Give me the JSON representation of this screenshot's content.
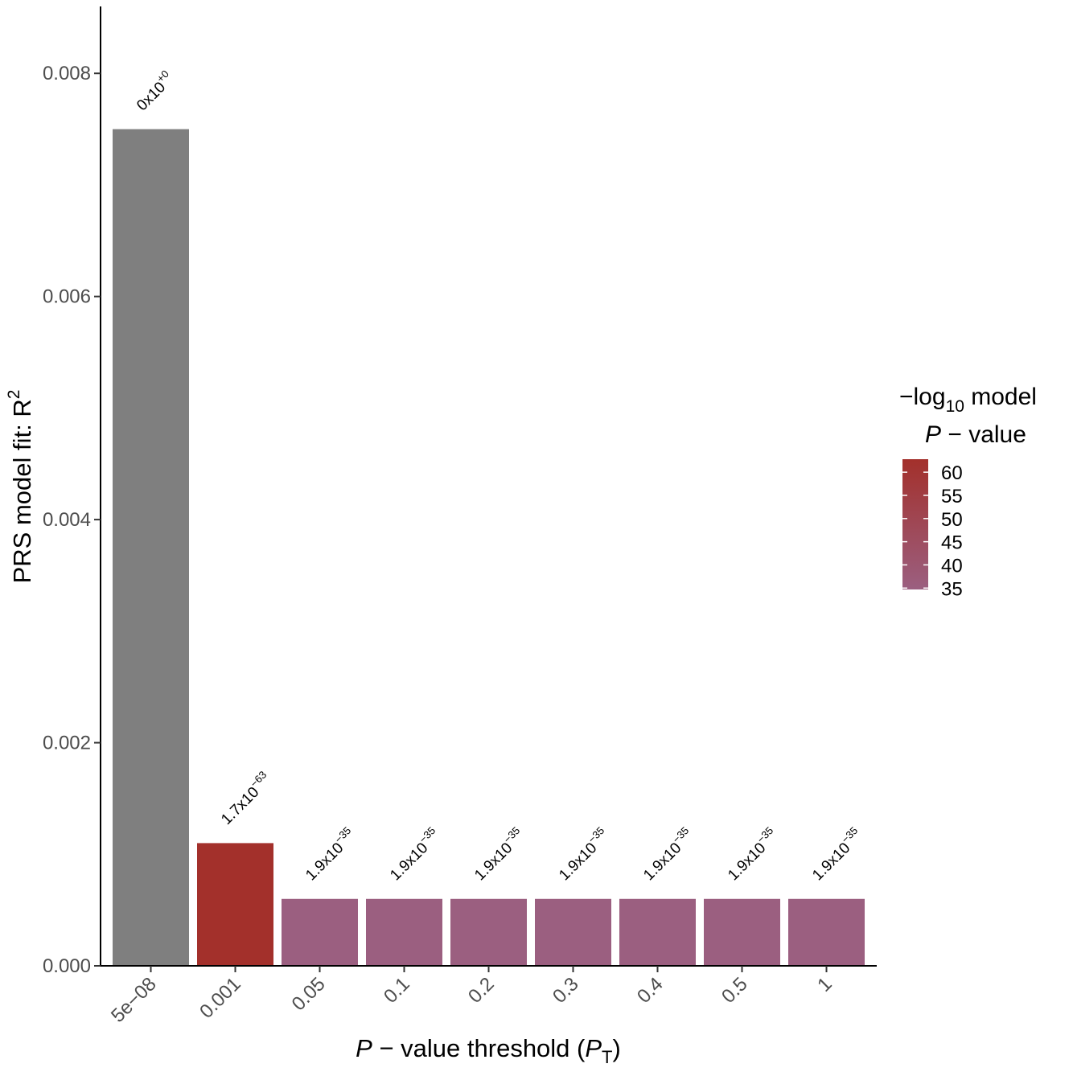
{
  "chart_data": {
    "type": "bar",
    "xlabel_italic": "P",
    "xlabel_mid": " − value threshold (",
    "xlabel_pt": "P",
    "xlabel_sub": "T",
    "xlabel_end": ")",
    "ylabel_main": "PRS model fit:  R",
    "ylabel_sup": "2",
    "categories": [
      "5e−08",
      "0.001",
      "0.05",
      "0.1",
      "0.2",
      "0.3",
      "0.4",
      "0.5",
      "1"
    ],
    "values": [
      0.0075,
      0.0011,
      0.0006,
      0.0006,
      0.0006,
      0.0006,
      0.0006,
      0.0006,
      0.0006
    ],
    "neg_log10_p": [
      null,
      62.8,
      34.7,
      34.7,
      34.7,
      34.7,
      34.7,
      34.7,
      34.7
    ],
    "bar_labels": [
      {
        "base": "0x10",
        "exp": "+0"
      },
      {
        "base": "1.7x10",
        "exp": "−63"
      },
      {
        "base": "1.9x10",
        "exp": "−35"
      },
      {
        "base": "1.9x10",
        "exp": "−35"
      },
      {
        "base": "1.9x10",
        "exp": "−35"
      },
      {
        "base": "1.9x10",
        "exp": "−35"
      },
      {
        "base": "1.9x10",
        "exp": "−35"
      },
      {
        "base": "1.9x10",
        "exp": "−35"
      },
      {
        "base": "1.9x10",
        "exp": "−35"
      }
    ],
    "ylim": [
      0,
      0.0086
    ],
    "yticks": [
      0.0,
      0.002,
      0.004,
      0.006,
      0.008
    ],
    "ytick_labels": [
      "0.000",
      "0.002",
      "0.004",
      "0.006",
      "0.008"
    ],
    "grid": false,
    "legend": {
      "position": "right",
      "title_line1_prefix": "−log",
      "title_line1_sub": "10",
      "title_line1_suffix": " model",
      "title_line2_italic": "P",
      "title_line2_rest": " − value",
      "range": [
        34.7,
        62.8
      ],
      "ticks": [
        60,
        55,
        50,
        45,
        40,
        35
      ],
      "color_low": "#9b5f80",
      "color_high": "#a3302b"
    },
    "na_color": "#7f7f7f"
  }
}
